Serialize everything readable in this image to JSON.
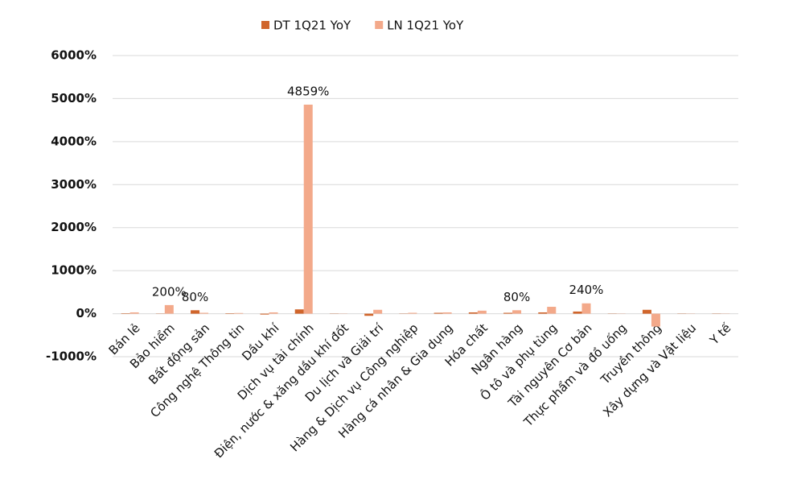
{
  "chart_data": {
    "type": "bar",
    "categories": [
      "Bán lẻ",
      "Bảo hiểm",
      "Bất động sản",
      "Công nghệ Thông tin",
      "Dầu khí",
      "Dịch vụ tài chính",
      "Điện, nước & xăng dầu khí đốt",
      "Du lịch và Giải trí",
      "Hàng & Dịch vụ Công nghiệp",
      "Hàng cá nhân & Gia dụng",
      "Hóa chất",
      "Ngân hàng",
      "Ô tô và phụ tùng",
      "Tài nguyên Cơ bản",
      "Thực phẩm và đồ uống",
      "Truyền thông",
      "Xây dựng và Vật liệu",
      "Y tế"
    ],
    "series": [
      {
        "name": "DT 1Q21 YoY",
        "color": "#d0652b",
        "values": [
          10,
          5,
          80,
          10,
          -20,
          100,
          5,
          -50,
          5,
          20,
          30,
          20,
          30,
          50,
          5,
          90,
          5,
          5
        ],
        "value_labels": [
          null,
          null,
          "80%",
          null,
          null,
          null,
          null,
          null,
          null,
          null,
          null,
          null,
          null,
          null,
          null,
          null,
          null,
          null
        ]
      },
      {
        "name": "LN 1Q21 YoY",
        "color": "#f3a98a",
        "values": [
          30,
          200,
          20,
          15,
          30,
          4859,
          5,
          90,
          20,
          30,
          70,
          80,
          160,
          240,
          5,
          -300,
          5,
          5
        ],
        "value_labels": [
          null,
          "200%",
          null,
          null,
          null,
          "4859%",
          null,
          null,
          null,
          null,
          null,
          "80%",
          null,
          "240%",
          null,
          null,
          null,
          null
        ]
      }
    ],
    "ylim": [
      -1000,
      6000
    ],
    "yticks": [
      {
        "value": -1000,
        "label": "-1000%"
      },
      {
        "value": 0,
        "label": "0%"
      },
      {
        "value": 1000,
        "label": "1000%"
      },
      {
        "value": 2000,
        "label": "2000%"
      },
      {
        "value": 3000,
        "label": "3000%"
      },
      {
        "value": 4000,
        "label": "4000%"
      },
      {
        "value": 5000,
        "label": "5000%"
      },
      {
        "value": 6000,
        "label": "6000%"
      }
    ],
    "grid": true,
    "legend": "top"
  }
}
